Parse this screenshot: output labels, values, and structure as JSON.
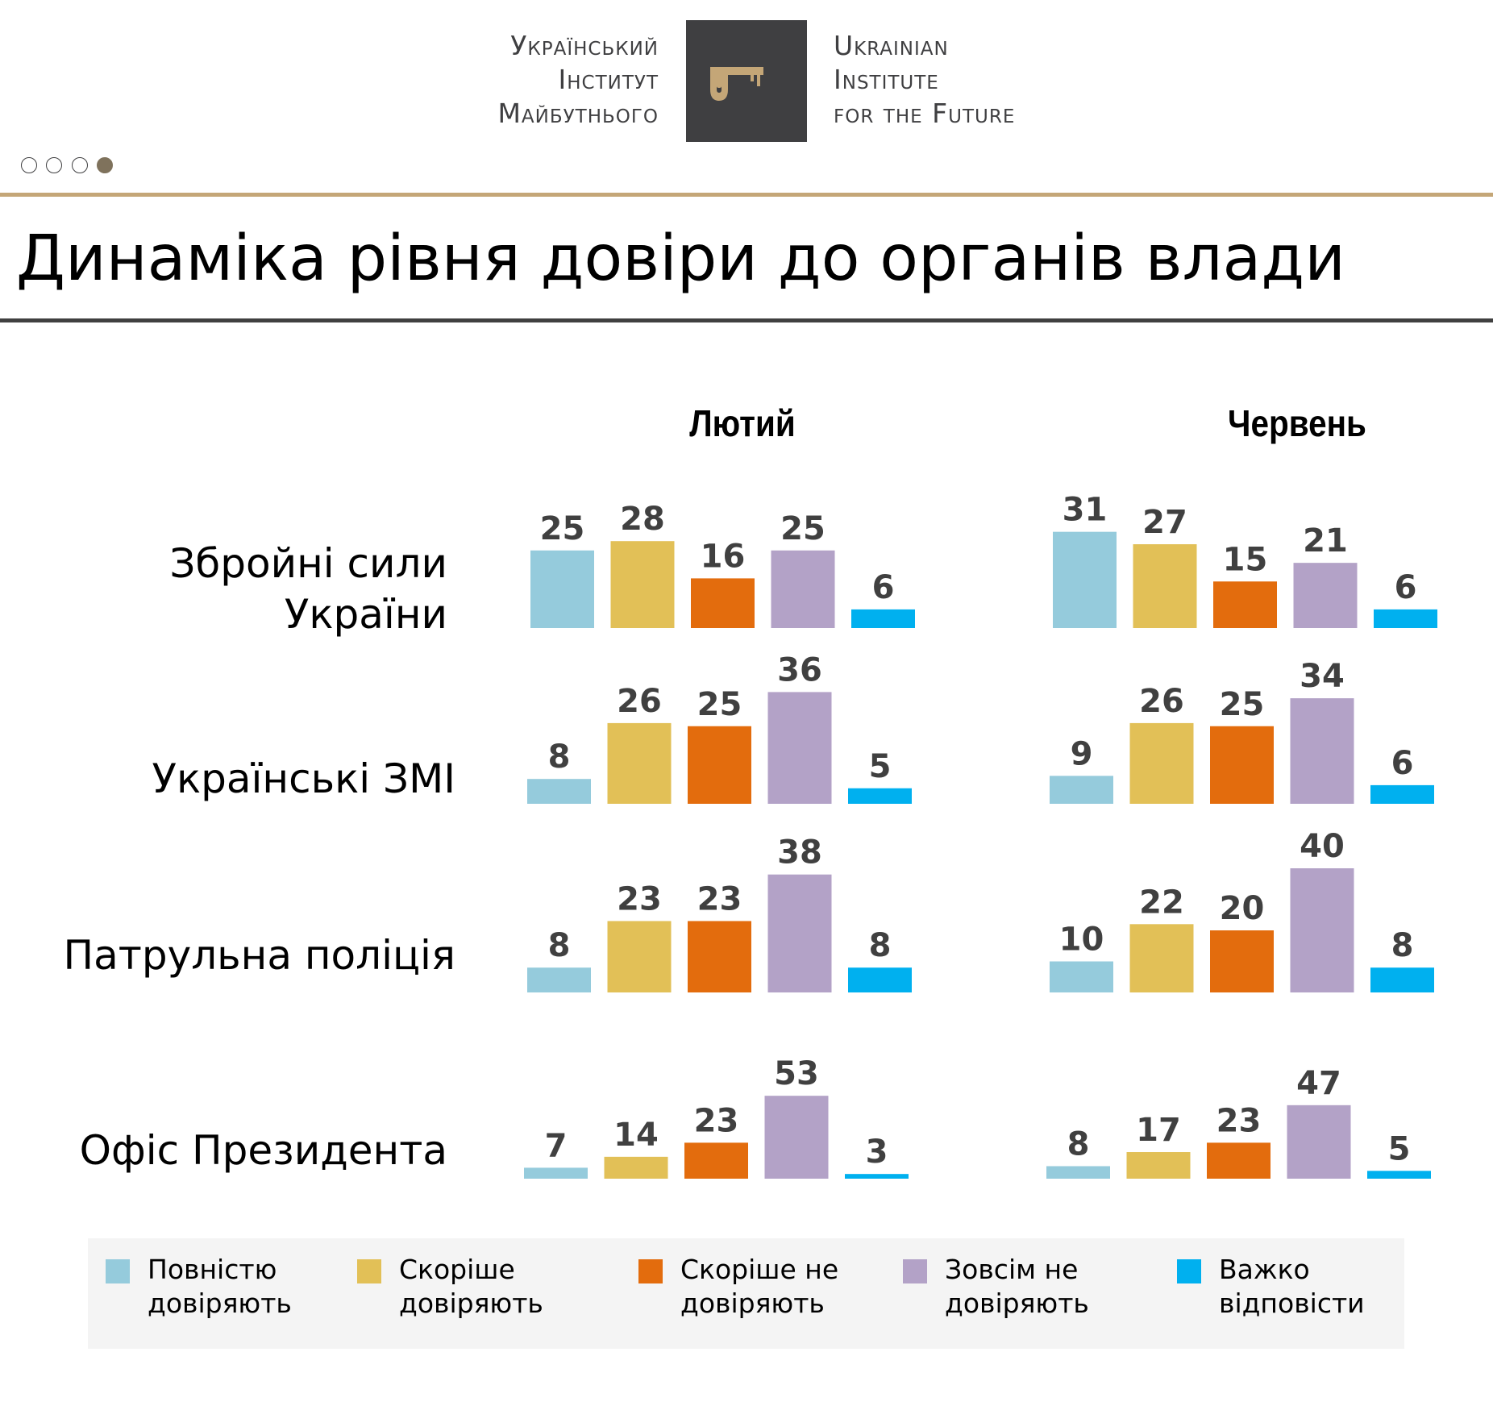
{
  "logo": {
    "ua_lines": [
      "Український",
      "Інститут",
      "Майбутнього"
    ],
    "en_lines": [
      "Ukrainian",
      "Institute",
      "for the Future"
    ],
    "icon": "key-icon",
    "box_color": "#3f3f41",
    "key_color": "#c4a677"
  },
  "pagination": {
    "total": 4,
    "active_index": 3
  },
  "title": "Динаміка рівня довіри до органів влади",
  "colors": {
    "fully_trust": "#95cbdc",
    "rather_trust": "#e2c057",
    "rather_distrust": "#e36c0d",
    "not_trust_at_all": "#b3a2c7",
    "hard_to_say": "#00b0ef",
    "gold_rule": "#c4a677",
    "dark_rule": "#404040",
    "legend_bg": "#f4f4f4"
  },
  "chart_data": {
    "type": "bar",
    "title": "Динаміка рівня довіри до органів влади",
    "unit": "%",
    "groups": [
      "Лютий",
      "Червень"
    ],
    "categories": [
      "Збройні сили України",
      "Українські ЗМІ",
      "Патрульна поліція",
      "Офіс Президента"
    ],
    "series_names": [
      "Повністю довіряють",
      "Скоріше довіряють",
      "Скоріше не довіряють",
      "Зовсім не довіряють",
      "Важко відповісти"
    ],
    "data": [
      {
        "category": "Збройні сили України",
        "label_lines": [
          "Збройні сили",
          "України"
        ],
        "Лютий": [
          25,
          28,
          16,
          25,
          6
        ],
        "Червень": [
          31,
          27,
          15,
          21,
          6
        ]
      },
      {
        "category": "Українські ЗМІ",
        "label_lines": [
          "Українські ЗМІ"
        ],
        "Лютий": [
          8,
          26,
          25,
          36,
          5
        ],
        "Червень": [
          9,
          26,
          25,
          34,
          6
        ]
      },
      {
        "category": "Патрульна поліція",
        "label_lines": [
          "Патрульна поліція"
        ],
        "Лютий": [
          8,
          23,
          23,
          38,
          8
        ],
        "Червень": [
          10,
          22,
          20,
          40,
          8
        ]
      },
      {
        "category": "Офіс Президента",
        "label_lines": [
          "Офіс Президента"
        ],
        "Лютий": [
          7,
          14,
          23,
          53,
          3
        ],
        "Червень": [
          8,
          17,
          23,
          47,
          5
        ]
      }
    ],
    "legend": {
      "position": "bottom",
      "items": [
        {
          "lines": [
            "Повністю",
            "довіряють"
          ],
          "color": "#95cbdc"
        },
        {
          "lines": [
            "Скоріше",
            "довіряють"
          ],
          "color": "#e2c057"
        },
        {
          "lines": [
            "Скоріше не",
            "довіряють"
          ],
          "color": "#e36c0d"
        },
        {
          "lines": [
            "Зовсім не",
            "довіряють"
          ],
          "color": "#b3a2c7"
        },
        {
          "lines": [
            "Важко",
            "відповісти"
          ],
          "color": "#00b0ef"
        }
      ]
    },
    "axes_visible": false,
    "grid": false
  }
}
